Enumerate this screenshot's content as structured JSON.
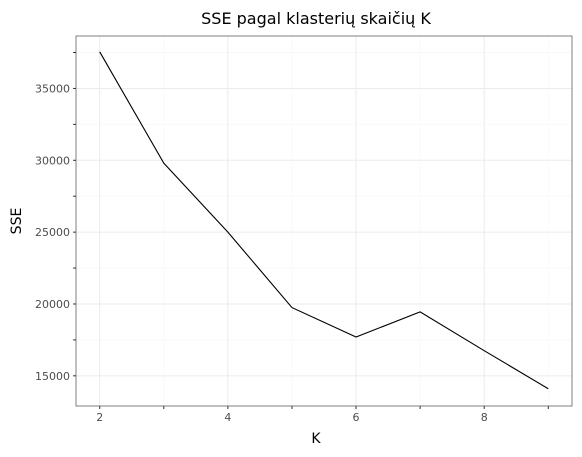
{
  "chart_data": {
    "type": "line",
    "title": "SSE pagal klasterių skaičių K",
    "xlabel": "K",
    "ylabel": "SSE",
    "x": [
      2,
      3,
      4,
      5,
      6,
      7,
      8,
      9
    ],
    "values": [
      37550,
      29800,
      25000,
      19750,
      17700,
      19450,
      16750,
      14100
    ],
    "xlim": [
      1.63,
      9.37
    ],
    "ylim": [
      12900,
      38650
    ],
    "x_ticks": [
      2,
      4,
      6,
      8
    ],
    "x_minor_ticks": [
      3,
      5,
      7,
      9
    ],
    "y_ticks": [
      15000,
      20000,
      25000,
      30000,
      35000
    ],
    "y_minor_ticks": [
      17500,
      22500,
      27500,
      32500,
      37500
    ],
    "grid": true,
    "line_color": "#000000",
    "grid_color": "#ebebeb",
    "minor_grid_color": "#f5f5f5",
    "panel_border_color": "#7f7f7f"
  }
}
